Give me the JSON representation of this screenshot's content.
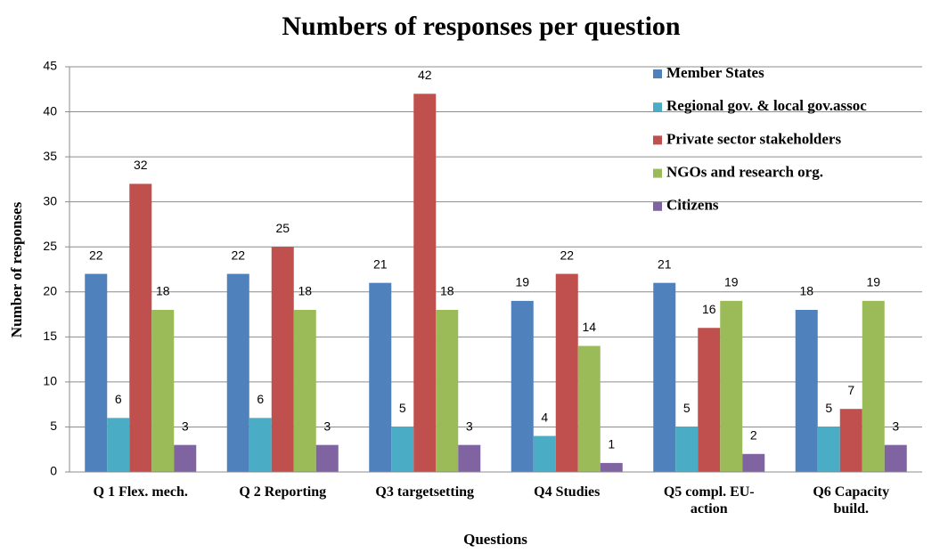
{
  "chart_data": {
    "type": "bar",
    "title": "Numbers of responses per question",
    "x_label": "Questions",
    "y_label": "Number of responses",
    "categories": [
      "Q 1 Flex. mech.",
      "Q 2 Reporting",
      "Q3 targetsetting",
      "Q4 Studies",
      "Q5 compl. EU-action",
      "Q6 Capacity build."
    ],
    "series": [
      {
        "name": "Member States",
        "color": "#4f81bd",
        "values": [
          22,
          22,
          21,
          19,
          21,
          18
        ]
      },
      {
        "name": "Regional gov. & local gov.assoc",
        "color": "#4bacc6",
        "values": [
          6,
          6,
          5,
          4,
          5,
          5
        ]
      },
      {
        "name": "Private sector stakeholders",
        "color": "#c0504d",
        "values": [
          32,
          25,
          42,
          22,
          16,
          7
        ]
      },
      {
        "name": "NGOs and research org.",
        "color": "#9bbb59",
        "values": [
          18,
          18,
          18,
          14,
          19,
          19
        ]
      },
      {
        "name": "Citizens",
        "color": "#8064a2",
        "values": [
          3,
          3,
          3,
          1,
          2,
          3
        ]
      }
    ],
    "ylim": [
      0,
      45
    ],
    "yticks": [
      0,
      5,
      10,
      15,
      20,
      25,
      30,
      35,
      40,
      45
    ],
    "grid": true,
    "legend": "upper right"
  }
}
